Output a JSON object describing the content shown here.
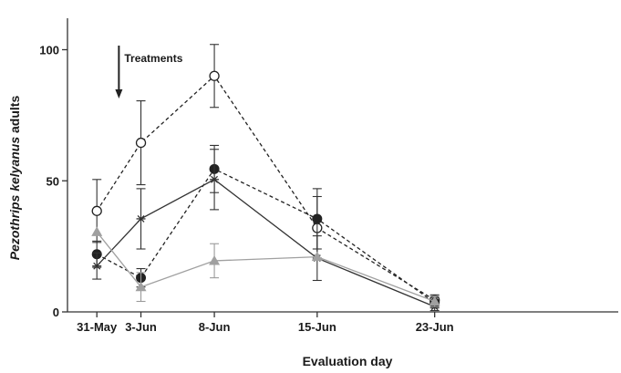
{
  "chart_data": {
    "type": "line",
    "title": "",
    "xlabel": "Evaluation day",
    "ylabel_prefix": "",
    "ylabel_italic": "Pezothrips kelyanus",
    "ylabel_suffix": " adults",
    "x_categories": [
      "31-May",
      "3-Jun",
      "8-Jun",
      "15-Jun",
      "23-Jun"
    ],
    "x_days": [
      0,
      3,
      8,
      15,
      23
    ],
    "xlim_days": [
      -2,
      35.5
    ],
    "ylim": [
      0,
      112
    ],
    "yticks": [
      0,
      50,
      100
    ],
    "grid": false,
    "legend": "none",
    "annotation": {
      "label": "Treatments",
      "day": 1.5
    },
    "series": [
      {
        "marker": "open-circle",
        "line_style": "dashed",
        "color": "#222222",
        "points": [
          {
            "x": 0,
            "y": 38.5,
            "err": 12
          },
          {
            "x": 3,
            "y": 64.5,
            "err": 16
          },
          {
            "x": 8,
            "y": 90,
            "err": 12
          },
          {
            "x": 15,
            "y": 32,
            "err": 12
          },
          {
            "x": 23,
            "y": 4.5,
            "err": 2
          }
        ]
      },
      {
        "marker": "filled-circle",
        "line_style": "dashed",
        "color": "#222222",
        "points": [
          {
            "x": 0,
            "y": 22,
            "err": 5
          },
          {
            "x": 3,
            "y": 13,
            "err": 3.5
          },
          {
            "x": 8,
            "y": 54.5,
            "err": 9
          },
          {
            "x": 15,
            "y": 35.5,
            "err": 11.5
          },
          {
            "x": 23,
            "y": 3.5,
            "err": 2
          }
        ]
      },
      {
        "marker": "asterisk",
        "line_style": "solid",
        "color": "#333333",
        "points": [
          {
            "x": 0,
            "y": 17.5,
            "err": 5
          },
          {
            "x": 3,
            "y": 35.5,
            "err": 11.5
          },
          {
            "x": 8,
            "y": 50.5,
            "err": 11.5
          },
          {
            "x": 15,
            "y": 20.5,
            "err": 8.5
          },
          {
            "x": 23,
            "y": 2,
            "err": 1.5
          }
        ]
      },
      {
        "marker": "triangle",
        "line_style": "solid",
        "color": "#a0a0a0",
        "points": [
          {
            "x": 0,
            "y": 30.5,
            "err": 0
          },
          {
            "x": 3,
            "y": 9.5,
            "err": 5.5
          },
          {
            "x": 8,
            "y": 19.5,
            "err": 6.5
          },
          {
            "x": 15,
            "y": 21,
            "err": 0
          },
          {
            "x": 23,
            "y": 4,
            "err": 2
          }
        ]
      }
    ]
  }
}
